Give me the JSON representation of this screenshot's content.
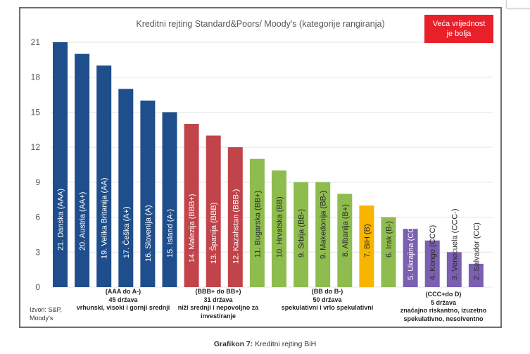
{
  "note": {
    "line1": "Veća vrijednost",
    "line2": "je bolja",
    "color": "#e8202a"
  },
  "source": {
    "line1": "Izvori: S&P,",
    "line2": "Moody's"
  },
  "caption": {
    "bold": "Grafikon 7:",
    "text": " Kreditni rejting BiH"
  },
  "groups": [
    {
      "range": "(AAA do A-)",
      "count": "45 država",
      "desc1": "vrhunski, visoki i gornji srednji",
      "desc2": ""
    },
    {
      "range": "(BBB+ do BB+)",
      "count": "31 država",
      "desc1": "niži srednji i nepovoljno za",
      "desc2": "investiranje"
    },
    {
      "range": "(BB do B-)",
      "count": "50 država",
      "desc1": "spekulativni i vrlo spekulativni",
      "desc2": ""
    },
    {
      "range": "(CCC+do D)",
      "count": "5 država",
      "desc1": "značajno riskantno, izuzetno",
      "desc2": "spekulativno, nesolventno"
    }
  ],
  "colors": {
    "blue": "#1f4e8c",
    "red": "#c0444a",
    "green": "#8fbc4e",
    "yellow": "#f7b500",
    "purple": "#7b5fb0"
  },
  "chart_data": {
    "type": "bar",
    "title": "Kreditni rejting Standard&Poors/ Moody's (kategorije rangiranja)",
    "xlabel": "",
    "ylabel": "",
    "ylim": [
      0,
      21
    ],
    "yticks": [
      0,
      3,
      6,
      9,
      12,
      15,
      18,
      21
    ],
    "grid": true,
    "categories": [
      "21. Danska (AAA)",
      "20. Austria (AA+)",
      "19. Velika Britanija (AA)",
      "17. Češka (A+)",
      "16. Slovenija (A)",
      "15. Island (A-)",
      "14. Malezija (BBB+)",
      "13. Španija (BBB)",
      "12. Kazahstan (BBB-)",
      "11. Bugarska (BB+)",
      "10. Hrvatska (BB)",
      "9. Srbija (BB-)",
      "9. Makedonija (BB-)",
      "8. Albanija (B+)",
      "7. BiH (B)",
      "6. Irak (B-)",
      "5. Ukrajina (CCC+)",
      "4. Kongo (CCC)",
      "3. Venecuela (CCC-)",
      "2. Salvador (CC)"
    ],
    "values": [
      21,
      20,
      19,
      17,
      16,
      15,
      14,
      13,
      12,
      11,
      10,
      9,
      9,
      8,
      7,
      6,
      5,
      4,
      3,
      2
    ],
    "bar_colors": [
      "blue",
      "blue",
      "blue",
      "blue",
      "blue",
      "blue",
      "red",
      "red",
      "red",
      "green",
      "green",
      "green",
      "green",
      "green",
      "yellow",
      "green",
      "purple",
      "purple",
      "purple",
      "purple"
    ],
    "label_colors": [
      "white",
      "white",
      "white",
      "white",
      "white",
      "white",
      "white",
      "white",
      "white",
      "dark",
      "dark",
      "dark",
      "dark",
      "dark",
      "dark",
      "dark",
      "white",
      "dark",
      "dark",
      "dark"
    ]
  }
}
